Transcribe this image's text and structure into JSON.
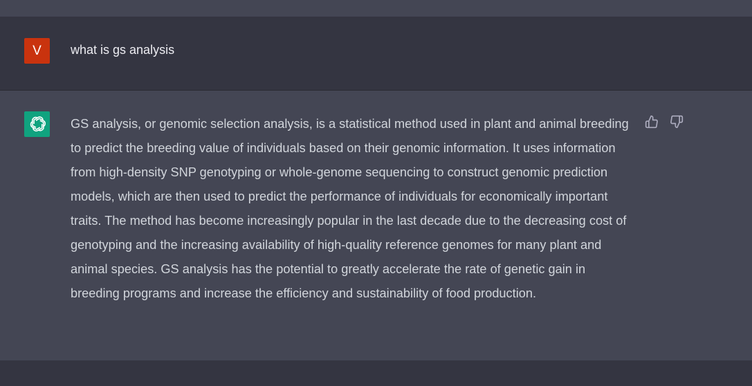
{
  "user_message": {
    "avatar_letter": "V",
    "text": "what is gs analysis"
  },
  "assistant_message": {
    "text": "GS analysis, or genomic selection analysis, is a statistical method used in plant and animal breeding to predict the breeding value of individuals based on their genomic information. It uses information from high-density SNP genotyping or whole-genome sequencing to construct genomic prediction models, which are then used to predict the performance of individuals for economically important traits. The method has become increasingly popular in the last decade due to the decreasing cost of genotyping and the increasing availability of high-quality reference genomes for many plant and animal species. GS analysis has the potential to greatly accelerate the rate of genetic gain in breeding programs and increase the efficiency and sustainability of food production."
  },
  "icons": {
    "assistant_avatar": "openai-logo-icon",
    "like": "thumbs-up-icon",
    "dislike": "thumbs-down-icon"
  },
  "colors": {
    "page_background": "#343541",
    "assistant_background": "#444654",
    "user_avatar": "#c9330e",
    "assistant_avatar": "#10a37f",
    "user_text": "#ececf1",
    "assistant_text": "#d1d5db",
    "icon": "#acacbe"
  }
}
